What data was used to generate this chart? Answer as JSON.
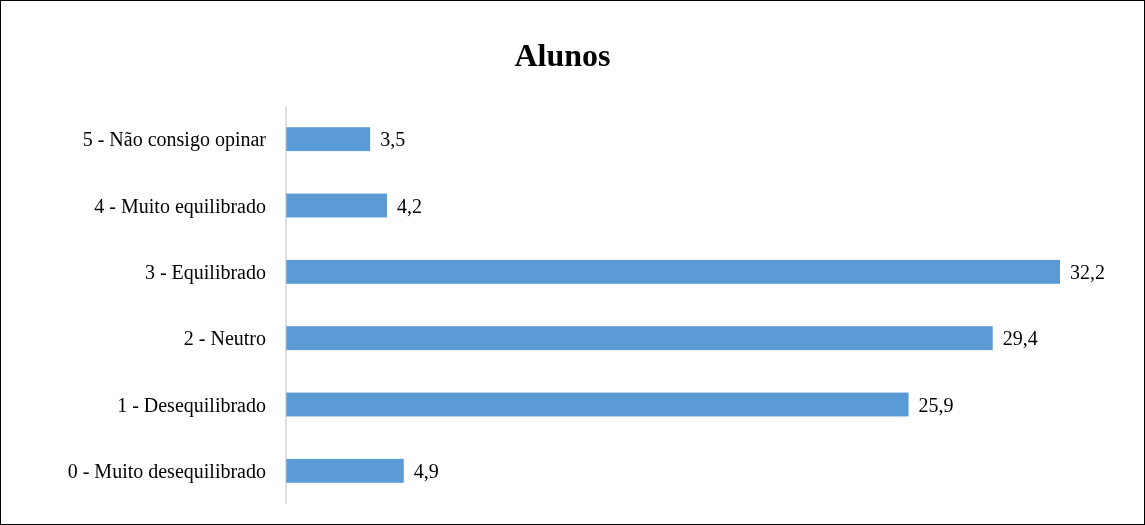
{
  "chart_data": {
    "type": "bar",
    "title": "Alunos",
    "orientation": "horizontal",
    "categories": [
      "5 - Não consigo opinar",
      "4 - Muito equilibrado",
      "3 - Equilibrado",
      "2 - Neutro",
      "1 - Desequilibrado",
      "0 - Muito desequilibrado"
    ],
    "values": [
      3.5,
      4.2,
      32.2,
      29.4,
      25.9,
      4.9
    ],
    "value_labels": [
      "3,5",
      "4,2",
      "32,2",
      "29,4",
      "25,9",
      "4,9"
    ],
    "color": "#5b9bd5"
  }
}
